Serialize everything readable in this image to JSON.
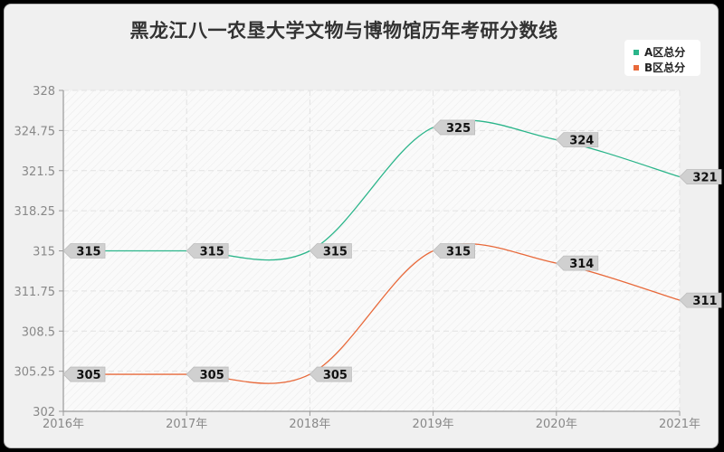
{
  "chart_data": {
    "type": "line",
    "title": "黑龙江八一农垦大学文物与博物馆历年考研分数线",
    "xlabel": "",
    "ylabel": "",
    "categories": [
      "2016年",
      "2017年",
      "2018年",
      "2019年",
      "2020年",
      "2021年"
    ],
    "series": [
      {
        "name": "A区总分",
        "color": "#2bb58a",
        "values": [
          315,
          315,
          315,
          325,
          324,
          321
        ]
      },
      {
        "name": "B区总分",
        "color": "#e8693a",
        "values": [
          305,
          305,
          305,
          315,
          314,
          311
        ]
      }
    ],
    "yticks": [
      "328",
      "324.75",
      "321.5",
      "318.25",
      "315",
      "311.75",
      "308.5",
      "305.25",
      "302"
    ],
    "ylim": [
      302,
      328
    ],
    "grid": true,
    "legend_position": "top-right",
    "smooth": true
  },
  "legend": {
    "items": [
      {
        "label": "A区总分",
        "color": "#2bb58a"
      },
      {
        "label": "B区总分",
        "color": "#e8693a"
      }
    ]
  }
}
